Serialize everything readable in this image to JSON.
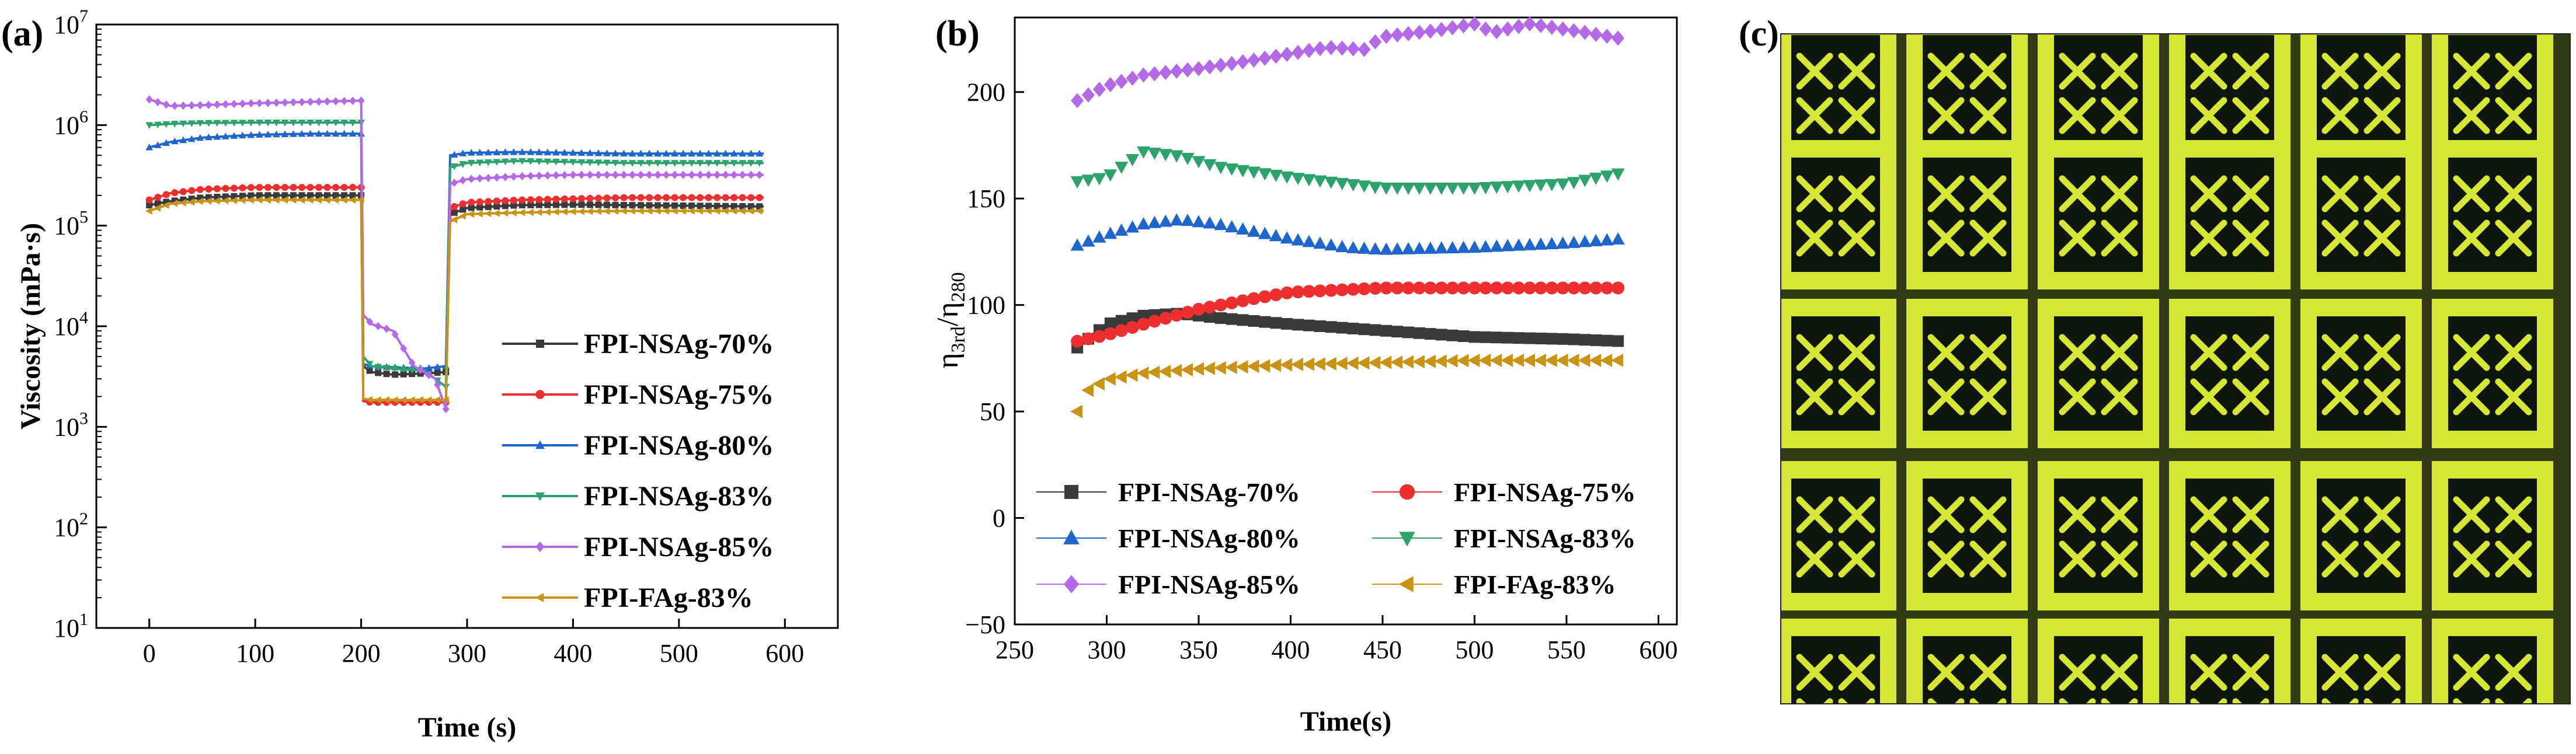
{
  "colors": {
    "NSAg70": "#3a3a3a",
    "NSAg75": "#ee2f2f",
    "NSAg80": "#1f66cc",
    "NSAg83": "#2ca36b",
    "NSAg85": "#b469e8",
    "FAg83": "#c99416",
    "micro_bg": "#0e160f",
    "micro_line": "#d6e634"
  },
  "panels": {
    "a": {
      "label": "(a)"
    },
    "b": {
      "label": "(b)"
    },
    "c": {
      "label": "(c)"
    }
  },
  "chart_data": [
    {
      "id": "a",
      "type": "line",
      "title": "",
      "xlabel": "Time (s)",
      "ylabel": "Viscosity (mPa·s)",
      "xlim": [
        -50,
        650
      ],
      "xticks": [
        0,
        100,
        200,
        300,
        400,
        500,
        600
      ],
      "yscale": "log",
      "ylim_exp": [
        1,
        7
      ],
      "ytick_exps": [
        1,
        2,
        3,
        4,
        5,
        6,
        7
      ],
      "ytick_base": "10",
      "legend_position": "center-right",
      "series": [
        {
          "name": "FPI-NSAg-70%",
          "color_key": "NSAg70",
          "marker": "square",
          "x": [
            0,
            20,
            50,
            100,
            150,
            200,
            202,
            210,
            230,
            260,
            280,
            284,
            300,
            350,
            400,
            450,
            500,
            580
          ],
          "y": [
            160000,
            175000,
            190000,
            200000,
            200000,
            200000,
            4000,
            3500,
            3300,
            3400,
            3500,
            130000,
            150000,
            160000,
            162000,
            160000,
            158000,
            155000
          ]
        },
        {
          "name": "FPI-NSAg-75%",
          "color_key": "NSAg75",
          "marker": "circle",
          "x": [
            0,
            20,
            50,
            100,
            150,
            200,
            202,
            210,
            230,
            260,
            280,
            284,
            300,
            350,
            400,
            450,
            500,
            580
          ],
          "y": [
            180000,
            210000,
            230000,
            240000,
            240000,
            240000,
            1800,
            1750,
            1750,
            1750,
            1750,
            150000,
            170000,
            180000,
            185000,
            190000,
            190000,
            190000
          ]
        },
        {
          "name": "FPI-NSAg-80%",
          "color_key": "NSAg80",
          "marker": "triangle-up",
          "x": [
            0,
            20,
            50,
            100,
            150,
            200,
            202,
            210,
            230,
            260,
            280,
            284,
            300,
            350,
            400,
            450,
            500,
            580
          ],
          "y": [
            600000,
            680000,
            750000,
            800000,
            820000,
            820000,
            4200,
            4000,
            3900,
            3800,
            4000,
            500000,
            530000,
            540000,
            530000,
            520000,
            520000,
            520000
          ]
        },
        {
          "name": "FPI-NSAg-83%",
          "color_key": "NSAg83",
          "marker": "triangle-down",
          "x": [
            0,
            20,
            50,
            100,
            150,
            200,
            202,
            210,
            230,
            260,
            280,
            284,
            300,
            350,
            400,
            450,
            500,
            580
          ],
          "y": [
            1000000,
            1030000,
            1050000,
            1060000,
            1060000,
            1060000,
            5000,
            4000,
            3800,
            3600,
            2500,
            380000,
            420000,
            440000,
            430000,
            420000,
            420000,
            420000
          ]
        },
        {
          "name": "FPI-NSAg-85%",
          "color_key": "NSAg85",
          "marker": "diamond",
          "x": [
            0,
            20,
            50,
            100,
            150,
            200,
            202,
            210,
            230,
            250,
            270,
            280,
            284,
            300,
            350,
            400,
            450,
            500,
            580
          ],
          "y": [
            1800000,
            1550000,
            1580000,
            1650000,
            1700000,
            1750000,
            13000,
            10500,
            9000,
            4000,
            3000,
            1500,
            260000,
            290000,
            310000,
            320000,
            320000,
            320000,
            320000
          ]
        },
        {
          "name": "FPI-FAg-83%",
          "color_key": "FAg83",
          "marker": "left-triangle",
          "x": [
            0,
            20,
            50,
            100,
            150,
            200,
            202,
            210,
            230,
            260,
            280,
            284,
            300,
            350,
            400,
            450,
            500,
            580
          ],
          "y": [
            140000,
            165000,
            175000,
            180000,
            180000,
            180000,
            1900,
            1850,
            1850,
            1850,
            1850,
            110000,
            130000,
            135000,
            138000,
            140000,
            140000,
            140000
          ]
        }
      ]
    },
    {
      "id": "b",
      "type": "scatter",
      "title": "",
      "xlabel": "Time(s)",
      "ylabel_main": "η",
      "ylabel_sub1": "3rd",
      "ylabel_sep": "/η",
      "ylabel_sub2": "280",
      "xlim": [
        250,
        610
      ],
      "xticks": [
        250,
        300,
        350,
        400,
        450,
        500,
        550,
        600
      ],
      "ylim": [
        -50,
        235
      ],
      "yticks": [
        -50,
        0,
        50,
        100,
        150,
        200
      ],
      "legend_position": "lower, two columns",
      "series": [
        {
          "name": "FPI-NSAg-70%",
          "color_key": "NSAg70",
          "marker": "square",
          "x": [
            284,
            300,
            320,
            340,
            360,
            400,
            450,
            500,
            550,
            580
          ],
          "y": [
            80,
            91,
            95,
            96,
            94,
            91,
            88,
            85,
            84,
            83
          ]
        },
        {
          "name": "FPI-NSAg-75%",
          "color_key": "NSAg75",
          "marker": "circle",
          "x": [
            284,
            300,
            320,
            350,
            380,
            400,
            450,
            500,
            550,
            580
          ],
          "y": [
            83,
            86,
            91,
            98,
            103,
            106,
            108,
            108,
            108,
            108
          ]
        },
        {
          "name": "FPI-NSAg-80%",
          "color_key": "NSAg80",
          "marker": "triangle-up",
          "x": [
            284,
            300,
            320,
            340,
            360,
            400,
            430,
            450,
            500,
            550,
            580
          ],
          "y": [
            128,
            133,
            138,
            140,
            138,
            131,
            127,
            126,
            127,
            129,
            131
          ]
        },
        {
          "name": "FPI-NSAg-83%",
          "color_key": "NSAg83",
          "marker": "triangle-down",
          "x": [
            284,
            300,
            310,
            320,
            340,
            360,
            400,
            450,
            500,
            550,
            580
          ],
          "y": [
            158,
            160,
            166,
            172,
            170,
            165,
            160,
            155,
            155,
            157,
            162
          ]
        },
        {
          "name": "FPI-NSAg-85%",
          "color_key": "NSAg85",
          "marker": "diamond",
          "x": [
            284,
            300,
            320,
            350,
            380,
            400,
            420,
            440,
            450,
            480,
            500,
            510,
            530,
            560,
            580
          ],
          "y": [
            196,
            203,
            208,
            211,
            215,
            218,
            221,
            220,
            226,
            229,
            232,
            228,
            232,
            228,
            225
          ]
        },
        {
          "name": "FPI-FAg-83%",
          "color_key": "FAg83",
          "marker": "left-triangle",
          "x": [
            284,
            290,
            300,
            320,
            350,
            400,
            450,
            500,
            550,
            580
          ],
          "y": [
            50,
            60,
            65,
            68,
            70,
            72,
            73,
            74,
            74,
            74
          ]
        }
      ]
    }
  ]
}
